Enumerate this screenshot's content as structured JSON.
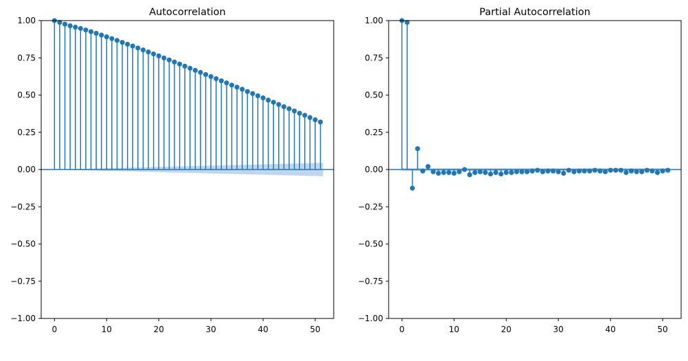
{
  "chart_data": [
    {
      "type": "stem",
      "title": "Autocorrelation",
      "xlim": [
        -2.55,
        53.55
      ],
      "ylim": [
        -1.0,
        1.0
      ],
      "xticks": [
        0,
        10,
        20,
        30,
        40,
        50
      ],
      "yticks": [
        -1.0,
        -0.75,
        -0.5,
        -0.25,
        0.0,
        0.25,
        0.5,
        0.75,
        1.0
      ],
      "xtick_labels": [
        "0",
        "10",
        "20",
        "30",
        "40",
        "50"
      ],
      "ytick_labels": [
        "−1.00",
        "−0.75",
        "−0.50",
        "−0.25",
        "0.00",
        "0.25",
        "0.50",
        "0.75",
        "1.00"
      ],
      "grid": false,
      "x": [
        0,
        1,
        2,
        3,
        4,
        5,
        6,
        7,
        8,
        9,
        10,
        11,
        12,
        13,
        14,
        15,
        16,
        17,
        18,
        19,
        20,
        21,
        22,
        23,
        24,
        25,
        26,
        27,
        28,
        29,
        30,
        31,
        32,
        33,
        34,
        35,
        36,
        37,
        38,
        39,
        40,
        41,
        42,
        43,
        44,
        45,
        46,
        47,
        48,
        49,
        50,
        51
      ],
      "values": [
        1.0,
        0.988,
        0.976,
        0.965,
        0.956,
        0.947,
        0.937,
        0.926,
        0.915,
        0.903,
        0.891,
        0.879,
        0.867,
        0.854,
        0.841,
        0.829,
        0.816,
        0.803,
        0.789,
        0.776,
        0.763,
        0.749,
        0.736,
        0.722,
        0.708,
        0.694,
        0.68,
        0.666,
        0.652,
        0.638,
        0.624,
        0.61,
        0.596,
        0.582,
        0.567,
        0.553,
        0.539,
        0.524,
        0.51,
        0.495,
        0.481,
        0.466,
        0.452,
        0.437,
        0.422,
        0.408,
        0.393,
        0.378,
        0.364,
        0.349,
        0.334,
        0.319
      ],
      "confidence_band": {
        "x": [
          0,
          51.5
        ],
        "lower_edge_at_start": 0.0,
        "lower_edge_at_end": -0.045,
        "upper_edge_at_start": 0.0,
        "upper_edge_at_end": 0.045
      },
      "colors": {
        "stem": "#1f77b4",
        "band": "#aac8e8"
      }
    },
    {
      "type": "stem",
      "title": "Partial Autocorrelation",
      "xlim": [
        -2.55,
        53.55
      ],
      "ylim": [
        -1.0,
        1.0
      ],
      "xticks": [
        0,
        10,
        20,
        30,
        40,
        50
      ],
      "yticks": [
        -1.0,
        -0.75,
        -0.5,
        -0.25,
        0.0,
        0.25,
        0.5,
        0.75,
        1.0
      ],
      "xtick_labels": [
        "0",
        "10",
        "20",
        "30",
        "40",
        "50"
      ],
      "ytick_labels": [
        "−1.00",
        "−0.75",
        "−0.50",
        "−0.25",
        "0.00",
        "0.25",
        "0.50",
        "0.75",
        "1.00"
      ],
      "grid": false,
      "x": [
        0,
        1,
        2,
        3,
        4,
        5,
        6,
        7,
        8,
        9,
        10,
        11,
        12,
        13,
        14,
        15,
        16,
        17,
        18,
        19,
        20,
        21,
        22,
        23,
        24,
        25,
        26,
        27,
        28,
        29,
        30,
        31,
        32,
        33,
        34,
        35,
        36,
        37,
        38,
        39,
        40,
        41,
        42,
        43,
        44,
        45,
        46,
        47,
        48,
        49,
        50,
        51
      ],
      "values": [
        1.0,
        0.988,
        -0.125,
        0.14,
        -0.01,
        0.02,
        -0.015,
        -0.025,
        -0.02,
        -0.02,
        -0.025,
        -0.015,
        0.0,
        -0.035,
        -0.02,
        -0.015,
        -0.02,
        -0.03,
        -0.02,
        -0.03,
        -0.02,
        -0.02,
        -0.015,
        -0.015,
        -0.015,
        -0.01,
        -0.005,
        -0.015,
        -0.01,
        -0.01,
        -0.015,
        -0.025,
        -0.005,
        -0.015,
        -0.01,
        -0.01,
        -0.01,
        -0.005,
        -0.01,
        -0.015,
        -0.005,
        -0.005,
        -0.005,
        -0.02,
        -0.01,
        -0.015,
        -0.015,
        -0.005,
        -0.01,
        -0.02,
        -0.01,
        -0.005
      ],
      "confidence_band": {
        "x": [
          0,
          51.5
        ],
        "lower_edge_at_start": -0.01,
        "lower_edge_at_end": -0.01,
        "upper_edge_at_start": 0.01,
        "upper_edge_at_end": 0.01
      },
      "colors": {
        "stem": "#1f77b4",
        "band": "#aac8e8"
      }
    }
  ]
}
